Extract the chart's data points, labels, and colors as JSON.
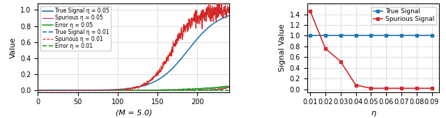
{
  "left_xlabel": "(M = 5.0)",
  "left_ylabel": "Value",
  "right_xlabel": "η",
  "right_ylabel": "Signal Value",
  "left_xlim": [
    0,
    240
  ],
  "left_ylim": [
    -0.02,
    1.08
  ],
  "left_xticks": [
    0,
    50,
    100,
    150,
    200
  ],
  "left_yticks": [
    0.0,
    0.2,
    0.4,
    0.6,
    0.8,
    1.0
  ],
  "right_xlim": [
    0.008,
    0.095
  ],
  "right_ylim": [
    -0.05,
    1.6
  ],
  "right_yticks": [
    0.0,
    0.2,
    0.4,
    0.6,
    0.8,
    1.0,
    1.2,
    1.4
  ],
  "right_xticks": [
    0.01,
    0.02,
    0.03,
    0.04,
    0.05,
    0.06,
    0.07,
    0.08,
    0.09
  ],
  "right_xtick_labels": [
    "0.01",
    "0.02",
    "0.03",
    "0.04",
    "0.05",
    "0.06",
    "0.07",
    "0.08",
    "0.09"
  ],
  "eta_values": [
    0.01,
    0.02,
    0.03,
    0.04,
    0.05,
    0.06,
    0.07,
    0.08,
    0.09
  ],
  "true_signal_right": [
    1.0,
    1.0,
    1.0,
    1.0,
    1.0,
    1.0,
    1.0,
    1.0,
    1.0
  ],
  "spurious_signal_right": [
    1.46,
    0.76,
    0.52,
    0.08,
    0.02,
    0.02,
    0.02,
    0.02,
    0.02
  ],
  "true_color": "#1f77b4",
  "spurious_color": "#d62728",
  "error_color": "#2ca02c",
  "legend_left_entries": [
    {
      "label": "True Signal η = 0.05",
      "color": "#1f77b4",
      "ls": "solid"
    },
    {
      "label": "Spurious η = 0.05",
      "color": "#d62728",
      "ls": "solid"
    },
    {
      "label": "Error η = 0.05",
      "color": "#2ca02c",
      "ls": "solid"
    },
    {
      "label": "True Signal η = 0.01",
      "color": "#1f77b4",
      "ls": "dashed"
    },
    {
      "label": "Spurious η = 0.01",
      "color": "#d62728",
      "ls": "dashed"
    },
    {
      "label": "Error η = 0.01",
      "color": "#2ca02c",
      "ls": "dashed"
    }
  ]
}
